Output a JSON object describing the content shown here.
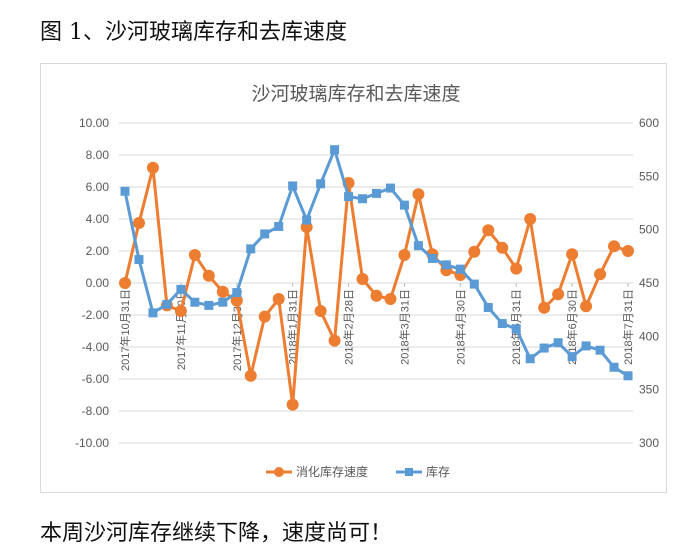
{
  "figure_title": "图 1、沙河玻璃库存和去库速度",
  "caption": "本周沙河库存继续下降，速度尚可！",
  "chart_data": {
    "type": "line",
    "title": "沙河玻璃库存和去库速度",
    "legend_position": "bottom",
    "grid": true,
    "x_tick_labels": [
      {
        "index": 0,
        "label": "2017年10月31日"
      },
      {
        "index": 3,
        "label": "2017年11月30日"
      },
      {
        "index": 8,
        "label": "2017年12月31日"
      },
      {
        "index": 13,
        "label": "2018年1月31日"
      },
      {
        "index": 15,
        "label": "2018年2月28日"
      },
      {
        "index": 17,
        "label": "2018年3月31日"
      },
      {
        "index": 23,
        "label": "2018年4月30日"
      },
      {
        "index": 28,
        "label": "2018年5月31日"
      },
      {
        "index": 32,
        "label": "2018年6月30日"
      },
      {
        "index": 36,
        "label": "2018年7月31日"
      }
    ],
    "y_left": {
      "min": -10,
      "max": 10,
      "step": 2,
      "tick_labels": [
        "10.00",
        "8.00",
        "6.00",
        "4.00",
        "2.00",
        "0.00",
        "-2.00",
        "-4.00",
        "-6.00",
        "-8.00",
        "-10.00"
      ]
    },
    "y_right": {
      "min": 300,
      "max": 600,
      "step": 50,
      "tick_labels": [
        "600",
        "550",
        "500",
        "450",
        "400",
        "350",
        "300"
      ]
    },
    "series": [
      {
        "name": "消化库存速度",
        "axis": "left",
        "marker": "circle",
        "color": "#ED7D31",
        "values": [
          0.0,
          3.75,
          7.2,
          -1.4,
          -1.75,
          1.75,
          0.45,
          -0.55,
          -1.1,
          -5.8,
          -2.1,
          -1.0,
          -7.6,
          3.5,
          -1.75,
          -3.6,
          6.25,
          0.25,
          -0.8,
          -1.0,
          1.75,
          5.55,
          1.8,
          0.8,
          0.5,
          1.95,
          3.3,
          2.2,
          0.9,
          4.0,
          -1.55,
          -0.7,
          1.8,
          -1.45,
          0.55,
          2.3,
          2.0
        ]
      },
      {
        "name": "库存",
        "axis": "right",
        "marker": "square",
        "color": "#5B9BD5",
        "values": [
          536,
          472,
          422,
          430,
          444,
          432,
          429,
          432,
          441,
          482,
          496,
          503,
          541,
          509,
          543,
          575,
          531,
          529,
          534,
          539,
          523,
          485,
          473,
          467,
          463,
          449,
          427,
          412,
          407,
          379,
          389,
          394,
          381,
          391,
          387,
          371,
          363
        ]
      }
    ]
  }
}
